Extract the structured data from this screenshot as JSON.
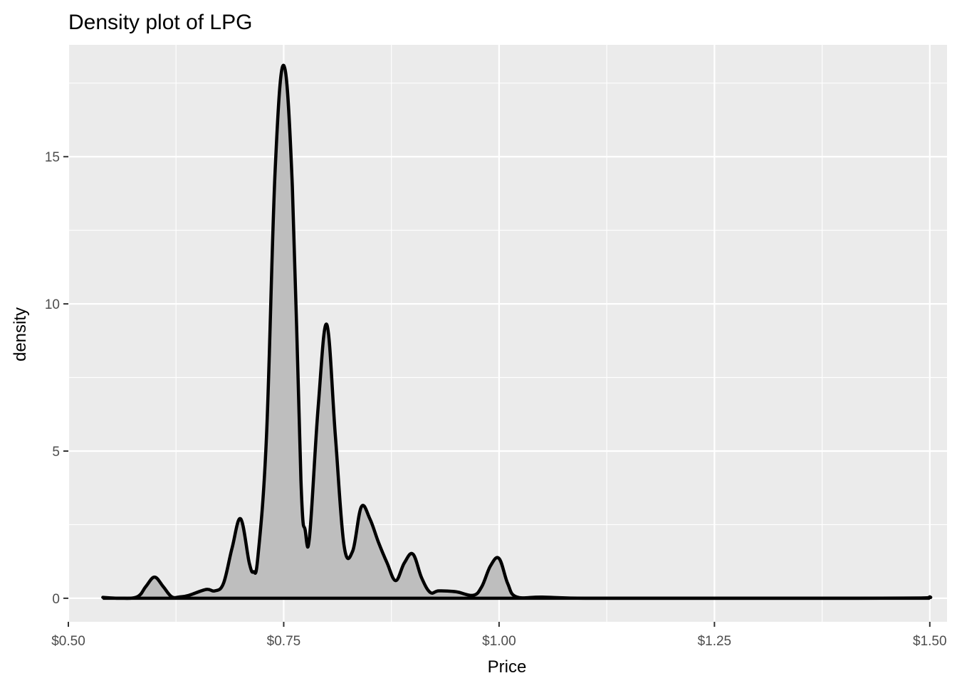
{
  "chart_data": {
    "type": "area",
    "title": "Density plot of LPG",
    "xlabel": "Price",
    "ylabel": "density",
    "xlim": [
      0.5,
      1.52
    ],
    "ylim": [
      -0.8,
      18.8
    ],
    "x_ticks": [
      0.5,
      0.75,
      1.0,
      1.25,
      1.5
    ],
    "x_tick_labels": [
      "$0.50",
      "$0.75",
      "$1.00",
      "$1.25",
      "$1.50"
    ],
    "y_ticks": [
      0,
      5,
      10,
      15
    ],
    "y_tick_labels": [
      "0",
      "5",
      "10",
      "15"
    ],
    "grid": true,
    "legend": "none",
    "series": [
      {
        "x": [
          0.54,
          0.56,
          0.58,
          0.59,
          0.6,
          0.61,
          0.62,
          0.63,
          0.64,
          0.66,
          0.67,
          0.68,
          0.69,
          0.7,
          0.71,
          0.715,
          0.72,
          0.73,
          0.74,
          0.75,
          0.76,
          0.77,
          0.775,
          0.78,
          0.79,
          0.8,
          0.81,
          0.82,
          0.83,
          0.84,
          0.85,
          0.86,
          0.87,
          0.88,
          0.89,
          0.9,
          0.91,
          0.92,
          0.93,
          0.95,
          0.97,
          0.98,
          0.99,
          1.0,
          1.01,
          1.02,
          1.05,
          1.1,
          1.2,
          1.3,
          1.4,
          1.49,
          1.5
        ],
        "y": [
          0.03,
          0.0,
          0.05,
          0.4,
          0.72,
          0.4,
          0.05,
          0.05,
          0.1,
          0.3,
          0.25,
          0.5,
          1.7,
          2.7,
          1.2,
          0.9,
          1.4,
          5.5,
          14.5,
          18.1,
          14.0,
          4.0,
          2.3,
          2.1,
          6.5,
          9.3,
          5.5,
          1.8,
          1.6,
          3.1,
          2.7,
          1.9,
          1.2,
          0.6,
          1.2,
          1.5,
          0.7,
          0.2,
          0.25,
          0.22,
          0.1,
          0.4,
          1.1,
          1.35,
          0.5,
          0.05,
          0.04,
          0.0,
          0.0,
          0.0,
          0.0,
          0.01,
          0.05
        ],
        "fill": "#bebebe",
        "stroke": "#000000"
      }
    ],
    "colors": {
      "panel_background": "#ebebeb",
      "grid_major": "#ffffff",
      "page_background": "#ffffff",
      "tick_text": "#4d4d4d"
    }
  }
}
